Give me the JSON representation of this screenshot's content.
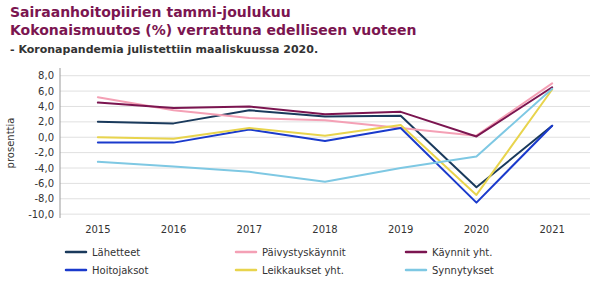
{
  "chart_data": {
    "type": "line",
    "title": [
      "Sairaanhoitopiirien tammi-joulukuu",
      "Kokonaismuutos (%) verrattuna edelliseen vuoteen"
    ],
    "subtitle": "- Koronapandemia julistettiin maaliskuussa 2020.",
    "y_label": "prosenttia",
    "categories": [
      "2015",
      "2016",
      "2017",
      "2018",
      "2019",
      "2020",
      "2021"
    ],
    "ylim": [
      -10.5,
      9.0
    ],
    "yticks": [
      {
        "value": -10.0,
        "label": "-10,0"
      },
      {
        "value": -8.0,
        "label": "-8,0"
      },
      {
        "value": -6.0,
        "label": "-6,0"
      },
      {
        "value": -4.0,
        "label": "-4,0"
      },
      {
        "value": -2.0,
        "label": "-2,0"
      },
      {
        "value": 0.0,
        "label": "0,0"
      },
      {
        "value": 2.0,
        "label": "2,0"
      },
      {
        "value": 4.0,
        "label": "4,0"
      },
      {
        "value": 6.0,
        "label": "6,0"
      },
      {
        "value": 8.0,
        "label": "8,0"
      }
    ],
    "grid": true,
    "legend": "bottom",
    "series": [
      {
        "name": "Lähetteet",
        "color": "#1a3a5c",
        "values": [
          2.0,
          1.8,
          3.5,
          2.7,
          2.8,
          -6.5,
          1.5
        ]
      },
      {
        "name": "Päivystyskäynnit",
        "color": "#f4a0b5",
        "values": [
          5.2,
          3.5,
          2.5,
          2.2,
          1.2,
          0.2,
          7.0
        ]
      },
      {
        "name": "Käynnit yht.",
        "color": "#7b1550",
        "values": [
          4.5,
          3.8,
          4.0,
          3.0,
          3.3,
          0.1,
          6.5
        ]
      },
      {
        "name": "Hoitojaksot",
        "color": "#1a3acc",
        "values": [
          -0.7,
          -0.7,
          1.0,
          -0.5,
          1.2,
          -8.5,
          1.5
        ]
      },
      {
        "name": "Leikkaukset yht.",
        "color": "#e8d44d",
        "values": [
          0.0,
          -0.2,
          1.2,
          0.2,
          1.6,
          -7.5,
          6.2
        ]
      },
      {
        "name": "Synnytykset",
        "color": "#7ec8e3",
        "values": [
          -3.2,
          -3.8,
          -4.5,
          -5.8,
          -4.0,
          -2.5,
          6.3
        ]
      }
    ]
  }
}
